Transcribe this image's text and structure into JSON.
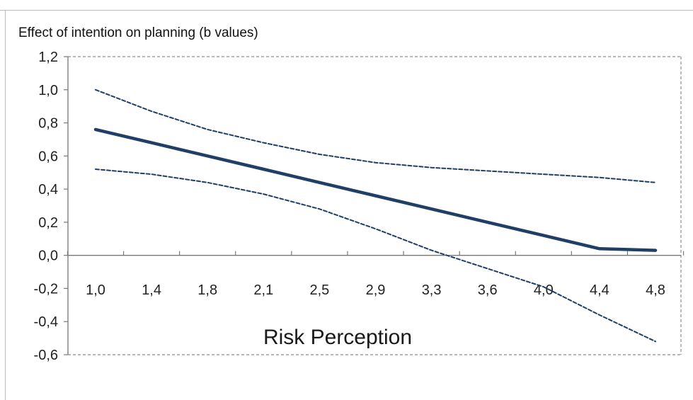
{
  "chart_data": {
    "type": "line",
    "title": "",
    "ylabel": "Effect of intention on planning (b values)",
    "xlabel": "Risk Perception",
    "categories": [
      "1,0",
      "1,4",
      "1,8",
      "2,1",
      "2,5",
      "2,9",
      "3,3",
      "3,6",
      "4,0",
      "4,4",
      "4,8"
    ],
    "yticks": [
      "-0,6",
      "-0,4",
      "-0,2",
      "0,0",
      "0,2",
      "0,4",
      "0,6",
      "0,8",
      "1,0",
      "1,2"
    ],
    "ylim": [
      -0.6,
      1.2
    ],
    "grid": false,
    "series": [
      {
        "role": "estimate",
        "style": "solid",
        "values": [
          0.76,
          0.68,
          0.6,
          0.52,
          0.44,
          0.36,
          0.28,
          0.2,
          0.12,
          0.04,
          0.03
        ]
      },
      {
        "role": "upper-bound",
        "style": "dashed",
        "values": [
          1.0,
          0.87,
          0.76,
          0.68,
          0.61,
          0.56,
          0.53,
          0.51,
          0.49,
          0.47,
          0.44
        ]
      },
      {
        "role": "lower-bound",
        "style": "dashed",
        "values": [
          0.52,
          0.49,
          0.44,
          0.37,
          0.28,
          0.16,
          0.03,
          -0.08,
          -0.19,
          -0.36,
          -0.52
        ]
      }
    ],
    "colors": {
      "line": "#1f3f66",
      "axis": "#777777",
      "frame": "#8c8c8c"
    }
  }
}
